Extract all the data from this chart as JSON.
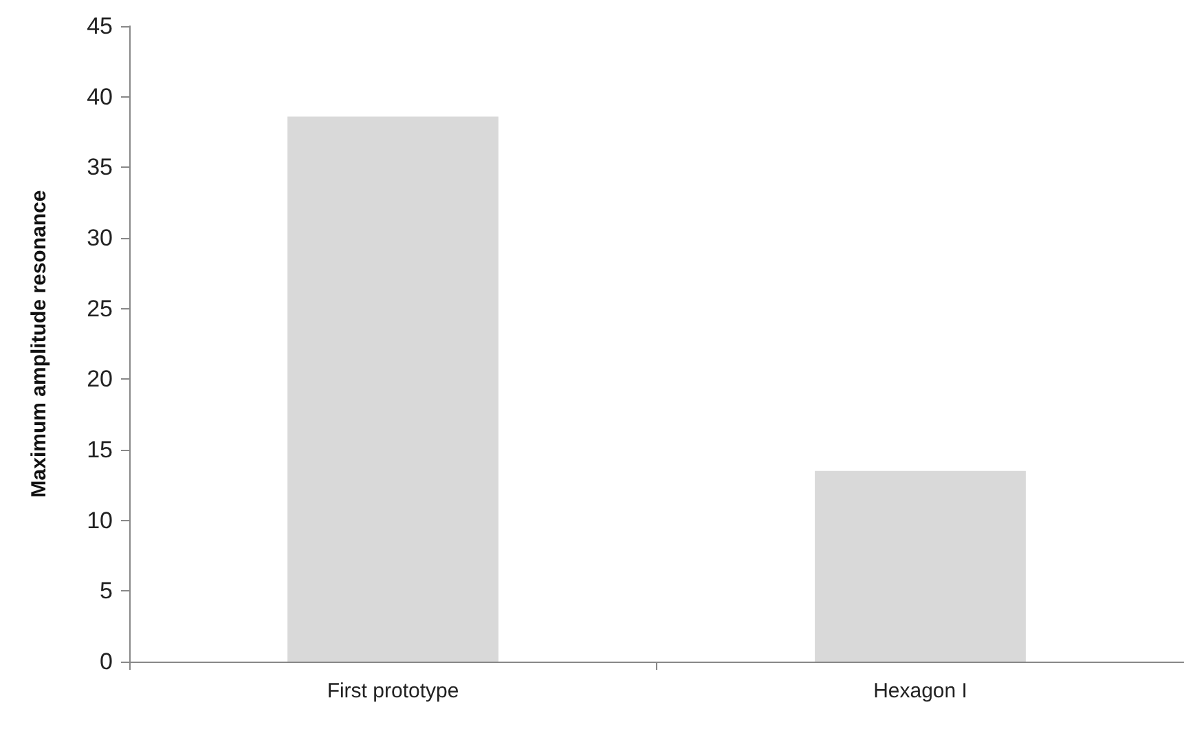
{
  "chart_data": {
    "type": "bar",
    "ylabel": "Maximum amplitude resonance",
    "categories": [
      "First prototype",
      "Hexagon I"
    ],
    "values": [
      38.6,
      13.5
    ],
    "color": "#d9d9d9",
    "ylim": [
      0,
      45
    ],
    "yticks": [
      0,
      5,
      10,
      15,
      20,
      25,
      30,
      35,
      40,
      45
    ]
  }
}
